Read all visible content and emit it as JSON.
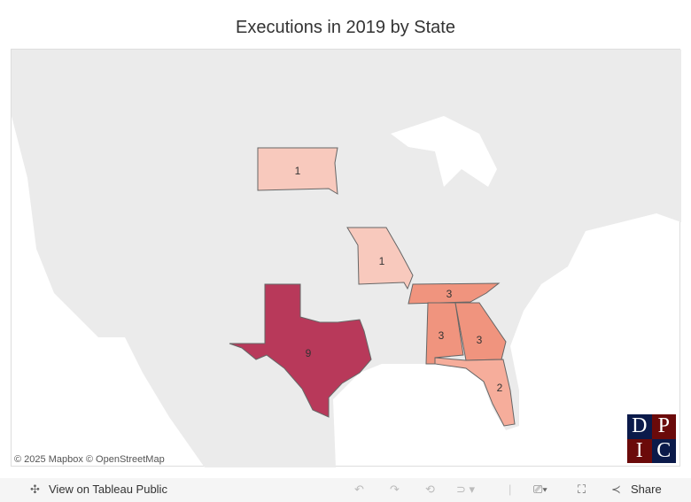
{
  "title": "Executions in 2019 by State",
  "map": {
    "credit": "© 2025 Mapbox © OpenStreetMap",
    "color_scale": {
      "low": "#f9cfc4",
      "high": "#b8395a"
    },
    "states": [
      {
        "name": "South Dakota",
        "value": "1",
        "color": "#f8c9bd"
      },
      {
        "name": "Missouri",
        "value": "1",
        "color": "#f8c9bd"
      },
      {
        "name": "Tennessee",
        "value": "3",
        "color": "#f0947e"
      },
      {
        "name": "Alabama",
        "value": "3",
        "color": "#f0947e"
      },
      {
        "name": "Georgia",
        "value": "3",
        "color": "#f0947e"
      },
      {
        "name": "Florida",
        "value": "2",
        "color": "#f6ad9b"
      },
      {
        "name": "Texas",
        "value": "9",
        "color": "#b8395a"
      }
    ]
  },
  "logo": {
    "letters": [
      "D",
      "P",
      "I",
      "C"
    ]
  },
  "toolbar": {
    "view_label": "View on Tableau Public",
    "share_label": "Share"
  }
}
